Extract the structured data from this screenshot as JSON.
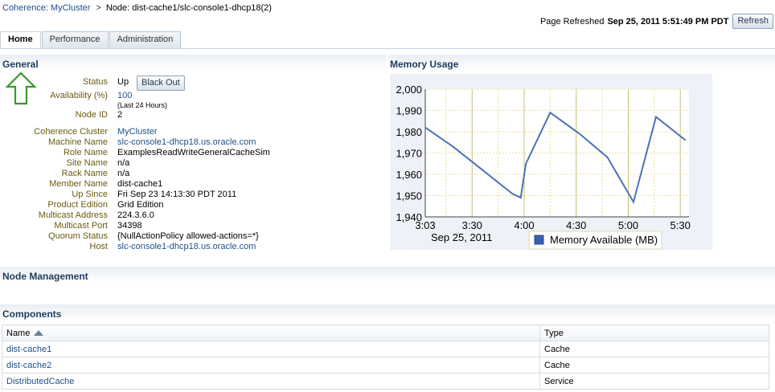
{
  "breadcrumb": {
    "cluster_link": "Coherence: MyCluster",
    "separator": ">",
    "current": "Node: dist-cache1/slc-console1-dhcp18(2)"
  },
  "header": {
    "refreshed_label": "Page Refreshed",
    "refreshed_time": "Sep 25, 2011 5:51:49 PM PDT",
    "refresh_button": "Refresh"
  },
  "tabs": [
    {
      "label": "Home",
      "active": true
    },
    {
      "label": "Performance",
      "active": false
    },
    {
      "label": "Administration",
      "active": false
    }
  ],
  "general": {
    "title": "General",
    "black_out_button": "Black Out",
    "properties": [
      {
        "key": "Status",
        "value": "Up",
        "link": false
      },
      {
        "key": "Availability (%)",
        "value": "100",
        "link": true
      },
      {
        "key": "",
        "value": "(Last 24 Hours)",
        "link": false,
        "small": true
      },
      {
        "key": "Node ID",
        "value": "2",
        "link": false
      },
      {
        "key": "Coherence Cluster",
        "value": "MyCluster",
        "link": true
      },
      {
        "key": "Machine Name",
        "value": "slc-console1-dhcp18.us.oracle.com",
        "link": true
      },
      {
        "key": "Role Name",
        "value": "ExamplesReadWriteGeneralCacheSim",
        "link": false
      },
      {
        "key": "Site Name",
        "value": "n/a",
        "link": false
      },
      {
        "key": "Rack Name",
        "value": "n/a",
        "link": false
      },
      {
        "key": "Member Name",
        "value": "dist-cache1",
        "link": false
      },
      {
        "key": "Up Since",
        "value": "Fri Sep 23 14:13:30 PDT 2011",
        "link": false
      },
      {
        "key": "Product Edition",
        "value": "Grid Edition",
        "link": false
      },
      {
        "key": "Multicast Address",
        "value": "224.3.6.0",
        "link": false
      },
      {
        "key": "Multicast Port",
        "value": "34398",
        "link": false
      },
      {
        "key": "Quorum Status",
        "value": "{NullActionPolicy allowed-actions=*}",
        "link": false
      },
      {
        "key": "Host",
        "value": "slc-console1-dhcp18.us.oracle.com",
        "link": true
      }
    ]
  },
  "memory": {
    "title": "Memory Usage"
  },
  "node_management": {
    "title": "Node Management"
  },
  "components": {
    "title": "Components",
    "columns": [
      "Name",
      "Type"
    ],
    "rows": [
      {
        "name": "dist-cache1",
        "type": "Cache"
      },
      {
        "name": "dist-cache2",
        "type": "Cache"
      },
      {
        "name": "DistributedCache",
        "type": "Service"
      }
    ]
  },
  "colors": {
    "line": "#4a72b8",
    "plot_bg": "#ffffff",
    "grid_minor": "#e8e0a0",
    "grid_major": "#c8c070",
    "legend_swatch": "#3b5fb0",
    "property_key": "#6b5b10",
    "link": "#1f4f8a",
    "arrow": "#3a9a2a"
  },
  "chart_data": {
    "type": "line",
    "xlabel": "",
    "ylabel": "",
    "x_ticks": [
      "3:03",
      "3:30",
      "4:00",
      "4:30",
      "5:00",
      "5:30"
    ],
    "x_date_label": "Sep 25, 2011",
    "ylim": [
      1940,
      2000
    ],
    "y_ticks": [
      "2,000",
      "1,990",
      "1,980",
      "1,970",
      "1,960",
      "1,950",
      "1,940"
    ],
    "grid": true,
    "legend": "bottom-center",
    "series": [
      {
        "name": "Memory Available (MB)",
        "x": [
          "3:03",
          "3:19",
          "3:36",
          "3:53",
          "3:58",
          "4:01",
          "4:15",
          "4:32",
          "4:48",
          "5:03",
          "5:16",
          "5:33"
        ],
        "y": [
          1982,
          1973,
          1962,
          1951,
          1949,
          1965,
          1989,
          1979,
          1968,
          1947,
          1987,
          1976
        ]
      }
    ]
  }
}
